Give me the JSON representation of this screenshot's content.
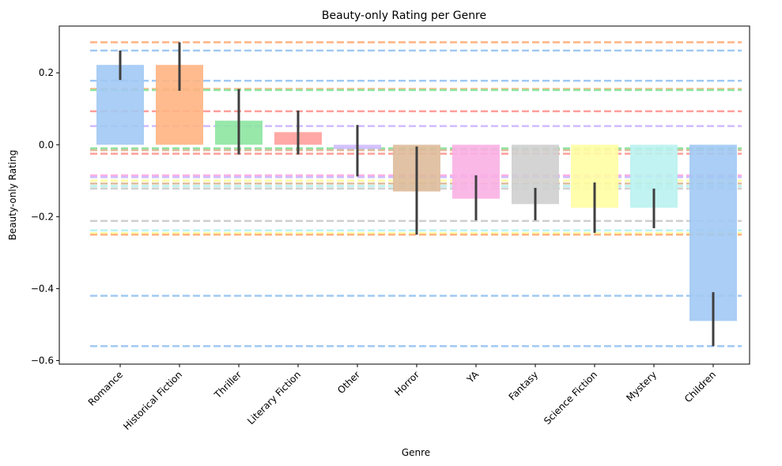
{
  "chart_data": {
    "type": "bar",
    "title": "Beauty-only Rating per Genre",
    "xlabel": "Genre",
    "ylabel": "Beauty-only Rating",
    "ylim": [
      -0.61,
      0.33
    ],
    "yticks": [
      0.2,
      0.0,
      -0.2,
      -0.4,
      -0.6
    ],
    "ytick_labels": [
      "0.2",
      "0.0",
      "−0.2",
      "−0.4",
      "−0.6"
    ],
    "grid": false,
    "categories": [
      "Romance",
      "Historical Fiction",
      "Thriller",
      "Literary Fiction",
      "Other",
      "Horror",
      "YA",
      "Fantasy",
      "Science Fiction",
      "Mystery",
      "Children"
    ],
    "values": [
      0.222,
      0.222,
      0.067,
      0.035,
      -0.012,
      -0.13,
      -0.15,
      -0.165,
      -0.175,
      -0.175,
      -0.49
    ],
    "error_low": [
      0.18,
      0.15,
      -0.027,
      -0.027,
      -0.088,
      -0.25,
      -0.21,
      -0.21,
      -0.245,
      -0.232,
      -0.56
    ],
    "error_high": [
      0.262,
      0.285,
      0.155,
      0.095,
      0.055,
      -0.005,
      -0.085,
      -0.12,
      -0.105,
      -0.122,
      -0.41
    ],
    "bar_colors": [
      "#a1c9f4",
      "#ffb482",
      "#8de5a1",
      "#ff9f9b",
      "#d0bbff",
      "#debb9b",
      "#fab0e4",
      "#cfcfcf",
      "#fffea3",
      "#b9f2f0",
      "#a1c9f4"
    ],
    "reference_lines": [
      {
        "y": 0.285,
        "color": "#ffb482"
      },
      {
        "y": 0.262,
        "color": "#a1c9f4"
      },
      {
        "y": 0.178,
        "color": "#a1c9f4"
      },
      {
        "y": 0.155,
        "color": "#ffb482"
      },
      {
        "y": 0.152,
        "color": "#8de5a1"
      },
      {
        "y": 0.093,
        "color": "#ff9f9b"
      },
      {
        "y": 0.052,
        "color": "#d0bbff"
      },
      {
        "y": -0.01,
        "color": "#8de5a1"
      },
      {
        "y": -0.015,
        "color": "#debb9b"
      },
      {
        "y": -0.025,
        "color": "#ff9f9b"
      },
      {
        "y": -0.085,
        "color": "#fab0e4"
      },
      {
        "y": -0.09,
        "color": "#d0bbff"
      },
      {
        "y": -0.1,
        "color": "#fffea3"
      },
      {
        "y": -0.108,
        "color": "#debb9b"
      },
      {
        "y": -0.115,
        "color": "#b9f2f0"
      },
      {
        "y": -0.122,
        "color": "#cfcfcf"
      },
      {
        "y": -0.212,
        "color": "#cfcfcf"
      },
      {
        "y": -0.238,
        "color": "#b9f2f0"
      },
      {
        "y": -0.246,
        "color": "#fffea3"
      },
      {
        "y": -0.25,
        "color": "#ffb482"
      },
      {
        "y": -0.42,
        "color": "#a1c9f4"
      },
      {
        "y": -0.56,
        "color": "#a1c9f4"
      }
    ]
  }
}
